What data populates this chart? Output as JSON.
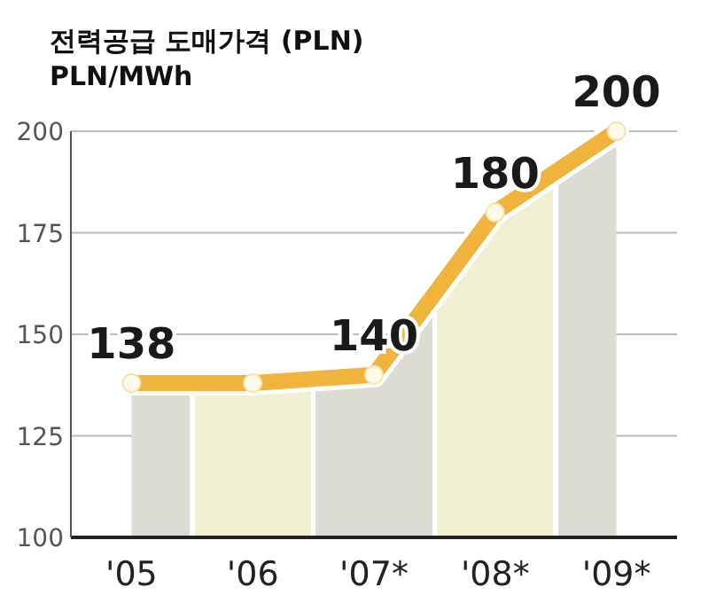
{
  "chart_data": {
    "type": "area",
    "title": "전력공급 도매가격 (PLN)",
    "subtitle": "PLN/MWh",
    "categories": [
      "'05",
      "'06",
      "'07*",
      "'08*",
      "'09*"
    ],
    "series": [
      {
        "type": "area",
        "color": "#f0b43c",
        "colors": [
          "#dcdcd4",
          "#f2f0d2",
          "#dcdcd4",
          "#f2f0d2",
          "#dcdcd4"
        ],
        "values": [
          138,
          138,
          140,
          180,
          200
        ],
        "value_labels": [
          "138",
          null,
          "140",
          "180",
          "200"
        ]
      }
    ],
    "ylim": [
      100,
      200
    ],
    "yticks": [
      100,
      125,
      150,
      175,
      200
    ],
    "grid": "y",
    "marker": "circle"
  }
}
